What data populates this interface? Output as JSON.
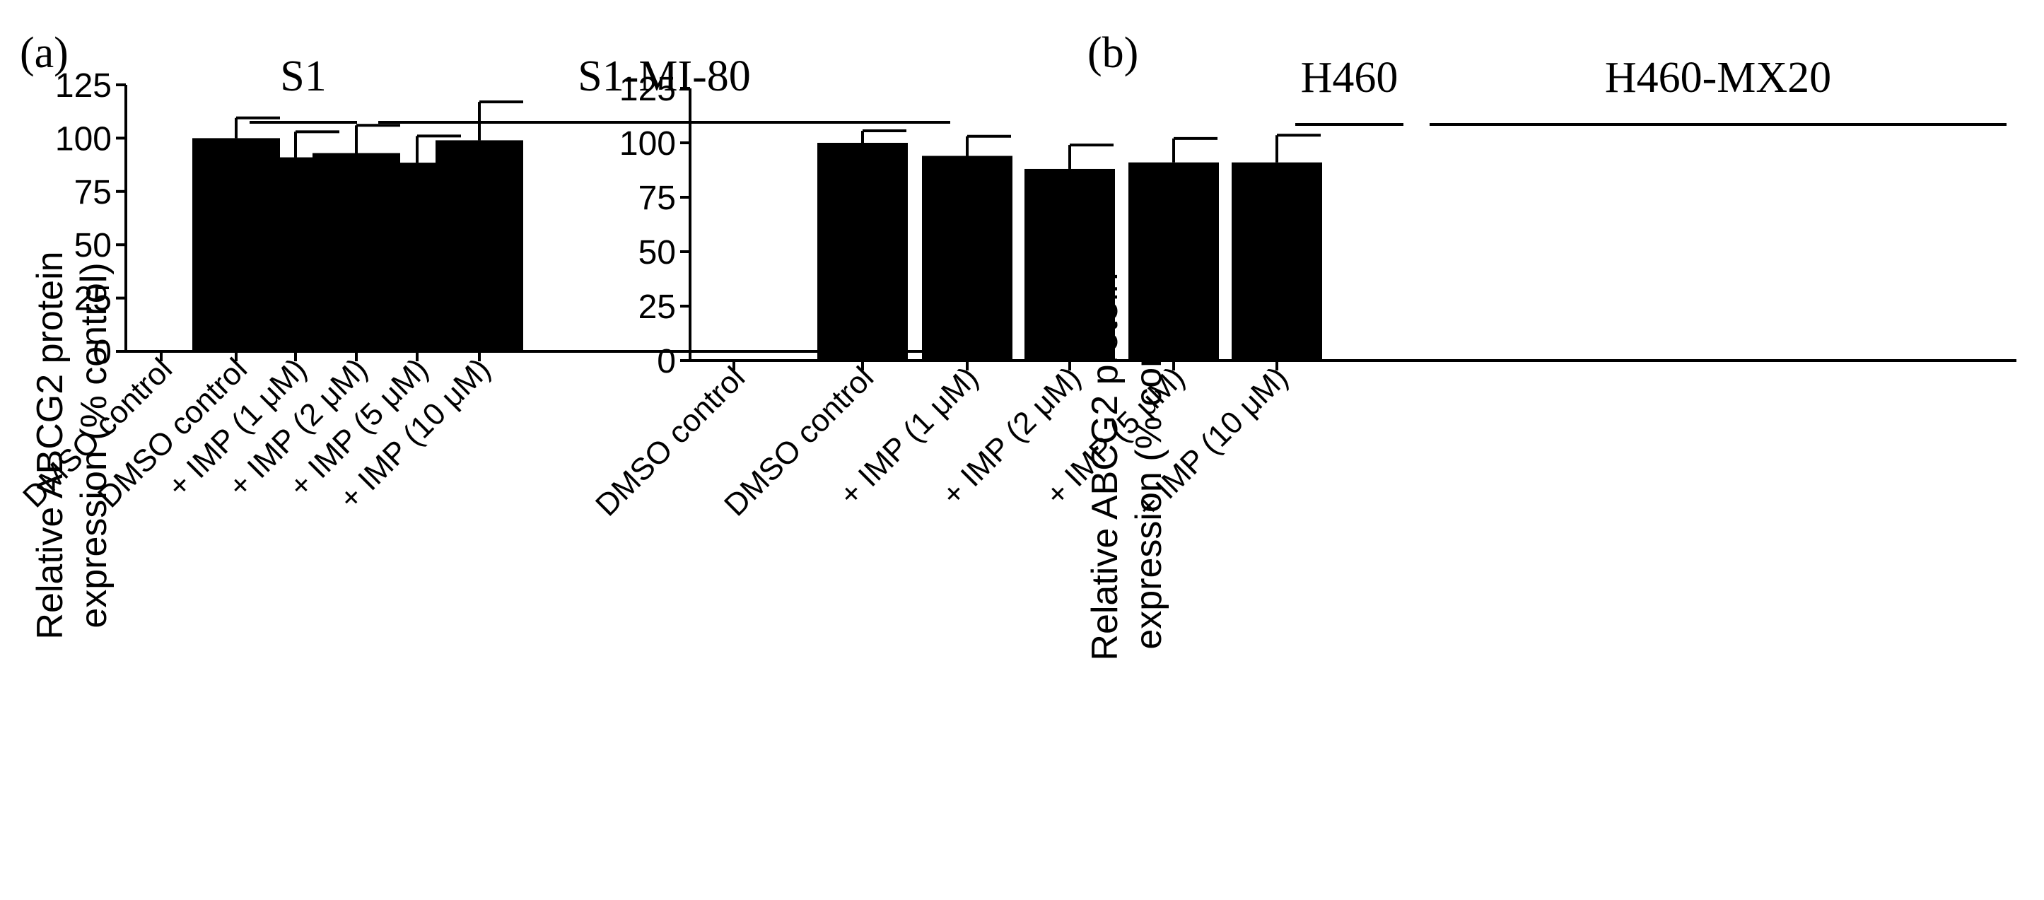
{
  "figure": {
    "background": "#ffffff",
    "ink_color": "#000000"
  },
  "chart_data": [
    {
      "type": "bar",
      "panel_label": "(a)",
      "ylabel_line1": "Relative ABCG2 protein",
      "ylabel_line2": "expression (% control)",
      "ylim": [
        0,
        125
      ],
      "yticks": [
        0,
        25,
        50,
        75,
        100,
        125
      ],
      "groups": [
        {
          "label": "S1",
          "start": 0,
          "end": 0
        },
        {
          "label": "S1-MI-80",
          "start": 1,
          "end": 5
        }
      ],
      "categories": [
        "DMSO control",
        "DMSO control",
        "+ IMP (1 μM)",
        "+ IMP (2 μM)",
        "+ IMP (5 μM)",
        "+ IMP (10 μM)"
      ],
      "values": [
        0,
        100,
        91,
        93,
        88.5,
        99
      ],
      "errors": [
        0,
        9.5,
        12,
        13,
        12.5,
        18
      ]
    },
    {
      "type": "bar",
      "panel_label": "(b)",
      "ylabel_line1": "Relative ABCG2 protein",
      "ylabel_line2": "expression (% control)",
      "ylim": [
        0,
        125
      ],
      "yticks": [
        0,
        25,
        50,
        75,
        100,
        125
      ],
      "groups": [
        {
          "label": "H460",
          "start": 0,
          "end": 0
        },
        {
          "label": "H460-MX20",
          "start": 1,
          "end": 5
        }
      ],
      "categories": [
        "DMSO control",
        "DMSO control",
        "+ IMP (1 μM)",
        "+ IMP (2 μM)",
        "+ IMP (5 μM)",
        "+ IMP (10 μM)"
      ],
      "values": [
        0,
        100,
        94,
        88,
        91,
        91
      ],
      "errors": [
        0,
        5.5,
        9,
        11,
        11,
        12.5
      ]
    }
  ]
}
